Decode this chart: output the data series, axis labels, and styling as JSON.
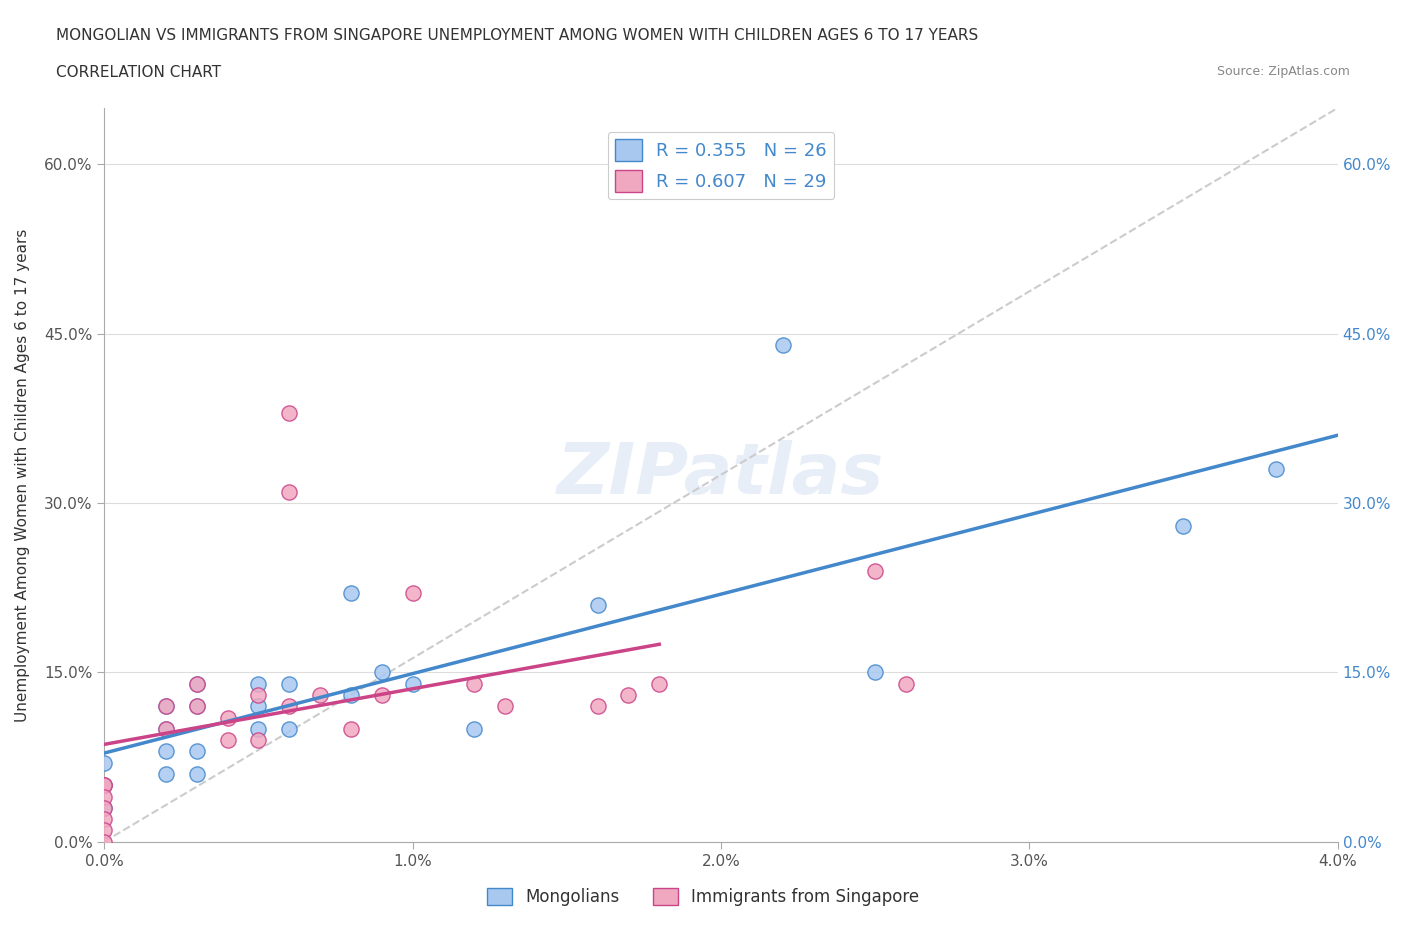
{
  "title_line1": "MONGOLIAN VS IMMIGRANTS FROM SINGAPORE UNEMPLOYMENT AMONG WOMEN WITH CHILDREN AGES 6 TO 17 YEARS",
  "title_line2": "CORRELATION CHART",
  "source": "Source: ZipAtlas.com",
  "xlabel_ticks": [
    "0.0%",
    "1.0%",
    "2.0%",
    "3.0%",
    "4.0%"
  ],
  "ylabel_ticks": [
    "0.0%",
    "15.0%",
    "30.0%",
    "45.0%",
    "60.0%"
  ],
  "xlim": [
    0.0,
    0.04
  ],
  "ylim": [
    0.0,
    0.65
  ],
  "mongolians_x": [
    0.0,
    0.0,
    0.0,
    0.002,
    0.002,
    0.002,
    0.002,
    0.003,
    0.003,
    0.003,
    0.003,
    0.005,
    0.005,
    0.005,
    0.006,
    0.006,
    0.008,
    0.008,
    0.009,
    0.01,
    0.012,
    0.016,
    0.022,
    0.025,
    0.035,
    0.038
  ],
  "mongolians_y": [
    0.07,
    0.05,
    0.03,
    0.12,
    0.1,
    0.08,
    0.06,
    0.14,
    0.12,
    0.08,
    0.06,
    0.14,
    0.12,
    0.1,
    0.14,
    0.1,
    0.13,
    0.22,
    0.15,
    0.14,
    0.1,
    0.21,
    0.44,
    0.15,
    0.28,
    0.33
  ],
  "singapore_x": [
    0.0,
    0.0,
    0.0,
    0.0,
    0.0,
    0.0,
    0.0,
    0.002,
    0.002,
    0.003,
    0.003,
    0.004,
    0.004,
    0.005,
    0.005,
    0.006,
    0.006,
    0.006,
    0.007,
    0.008,
    0.009,
    0.01,
    0.012,
    0.013,
    0.016,
    0.017,
    0.018,
    0.025,
    0.026
  ],
  "singapore_y": [
    0.05,
    0.05,
    0.04,
    0.03,
    0.02,
    0.01,
    0.0,
    0.12,
    0.1,
    0.14,
    0.12,
    0.11,
    0.09,
    0.13,
    0.09,
    0.38,
    0.31,
    0.12,
    0.13,
    0.1,
    0.13,
    0.22,
    0.14,
    0.12,
    0.12,
    0.13,
    0.14,
    0.24,
    0.14
  ],
  "mongolians_R": 0.355,
  "mongolians_N": 26,
  "singapore_R": 0.607,
  "singapore_N": 29,
  "mongolians_color": "#a8c8f0",
  "singapore_color": "#f0a8c0",
  "mongolians_line_color": "#4488cc",
  "singapore_line_color": "#cc4488",
  "trendline_gray_color": "#cccccc",
  "watermark": "ZIPatlas",
  "background_color": "#ffffff",
  "grid_color": "#dddddd",
  "legend_text_color": "#4488cc"
}
